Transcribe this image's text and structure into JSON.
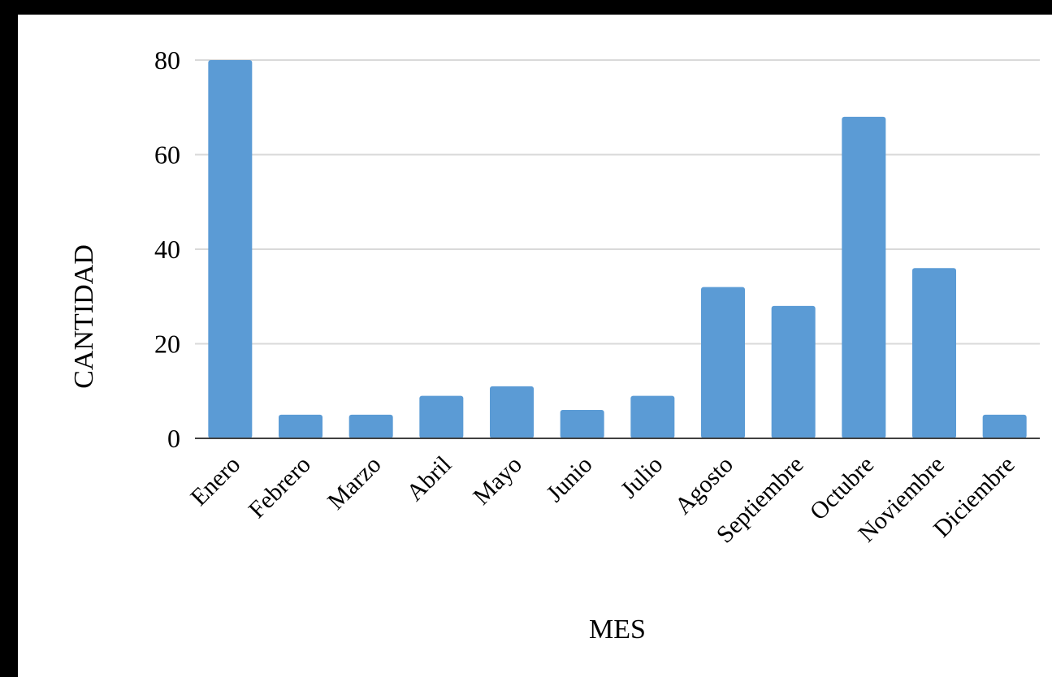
{
  "chart_data": {
    "type": "bar",
    "title": "",
    "xlabel": "MES",
    "ylabel": "CANTIDAD",
    "categories": [
      "Enero",
      "Febrero",
      "Marzo",
      "Abril",
      "Mayo",
      "Junio",
      "Julio",
      "Agosto",
      "Septiembre",
      "Octubre",
      "Noviembre",
      "Diciembre"
    ],
    "values": [
      80,
      5,
      5,
      9,
      11,
      6,
      9,
      32,
      28,
      68,
      36,
      5
    ],
    "ylim": [
      0,
      80
    ],
    "yticks": [
      0,
      20,
      40,
      60,
      80
    ],
    "grid": true,
    "legend": "none",
    "colors": {
      "bar": "#5b9bd5",
      "grid": "#d9d9d9",
      "axis": "#404040",
      "background": "#ffffff",
      "frame": "#000000"
    }
  }
}
